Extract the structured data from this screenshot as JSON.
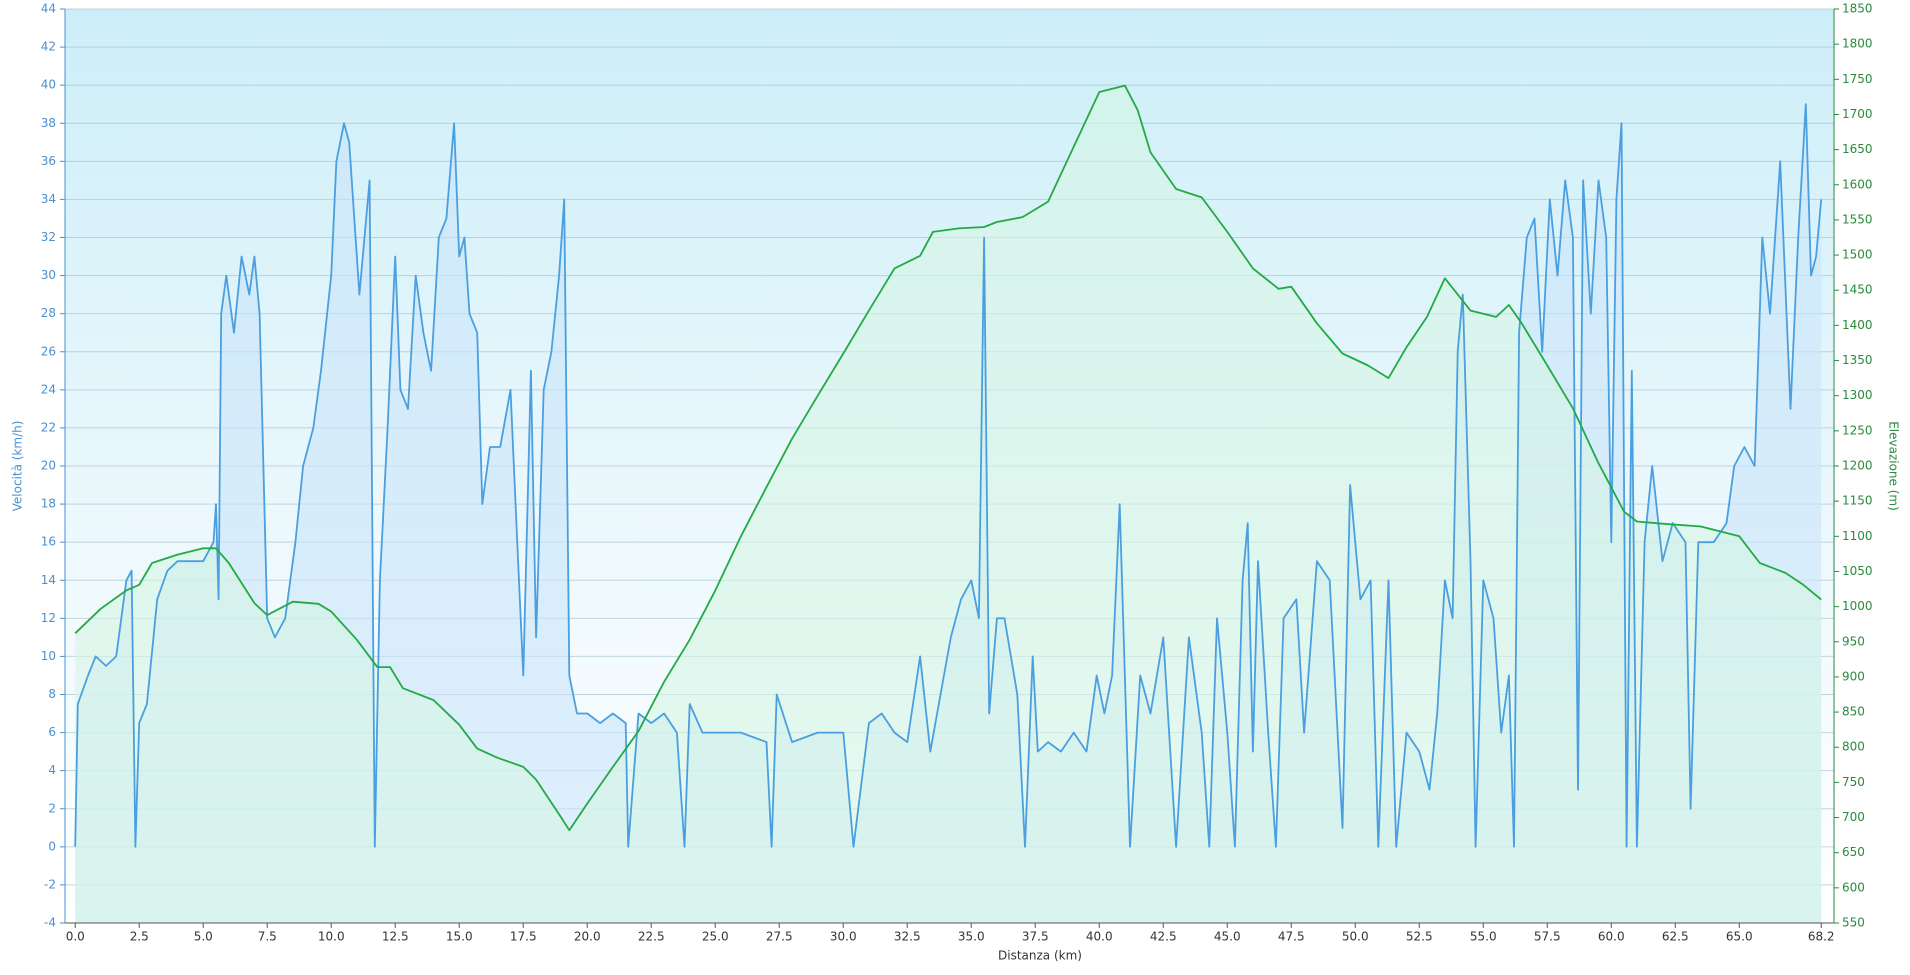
{
  "chart_data": {
    "type": "line",
    "xlabel": "Distanza  (km)",
    "ylabel": "Velocità (km/h)",
    "y2label": "Elevazione (m)",
    "grid": true,
    "xlim": [
      -0.4,
      68.7
    ],
    "xticks": [
      {
        "value": 0,
        "label": "0.0"
      },
      2.5,
      {
        "value": 5,
        "label": "5.0"
      },
      7.5,
      {
        "value": 10,
        "label": "10.0"
      },
      12.5,
      {
        "value": 15,
        "label": "15.0"
      },
      17.5,
      {
        "value": 20,
        "label": "20.0"
      },
      22.5,
      {
        "value": 25,
        "label": "25.0"
      },
      27.5,
      {
        "value": 30,
        "label": "30.0"
      },
      32.5,
      {
        "value": 35,
        "label": "35.0"
      },
      37.5,
      {
        "value": 40,
        "label": "40.0"
      },
      42.5,
      {
        "value": 45,
        "label": "45.0"
      },
      47.5,
      {
        "value": 50,
        "label": "50.0"
      },
      52.5,
      {
        "value": 55,
        "label": "55.0"
      },
      57.5,
      {
        "value": 60,
        "label": "60.0"
      },
      62.5,
      {
        "value": 65,
        "label": "65.0"
      },
      68.2
    ],
    "ylim": [
      -4,
      44
    ],
    "yticks": [
      -4,
      -2,
      0,
      2,
      4,
      6,
      8,
      10,
      12,
      14,
      16,
      18,
      20,
      22,
      24,
      26,
      28,
      30,
      32,
      34,
      36,
      38,
      40,
      42,
      44
    ],
    "y2lim": [
      550,
      1850
    ],
    "y2ticks": [
      550,
      600,
      650,
      700,
      750,
      800,
      850,
      900,
      950,
      1000,
      1050,
      1100,
      1150,
      1200,
      1250,
      1300,
      1350,
      1400,
      1450,
      1500,
      1550,
      1600,
      1650,
      1700,
      1750,
      1800,
      1850
    ],
    "series": [
      {
        "color": "#4a9fe0",
        "fill": "#c9e4fa",
        "x": [
          0,
          0.1,
          0.5,
          0.8,
          1.2,
          1.6,
          2.0,
          2.2,
          2.35,
          2.5,
          2.8,
          3.2,
          3.6,
          4.0,
          4.5,
          5.0,
          5.4,
          5.5,
          5.6,
          5.7,
          5.9,
          6.2,
          6.5,
          6.8,
          7.0,
          7.2,
          7.5,
          7.8,
          8.2,
          8.6,
          8.9,
          9.3,
          9.6,
          10.0,
          10.2,
          10.5,
          10.7,
          10.9,
          11.1,
          11.5,
          11.7,
          11.9,
          12.2,
          12.5,
          12.7,
          13.0,
          13.3,
          13.6,
          13.9,
          14.2,
          14.5,
          14.8,
          15.0,
          15.2,
          15.4,
          15.7,
          15.9,
          16.2,
          16.6,
          17.0,
          17.3,
          17.5,
          17.8,
          18.0,
          18.3,
          18.6,
          18.9,
          19.1,
          19.3,
          19.6,
          20.0,
          20.5,
          21.0,
          21.5,
          21.6,
          22.0,
          22.5,
          23.0,
          23.5,
          23.8,
          24.0,
          24.5,
          25.0,
          26.0,
          27.0,
          27.2,
          27.4,
          28.0,
          29.0,
          30.0,
          30.4,
          31.0,
          31.5,
          32.0,
          32.5,
          33.0,
          33.4,
          33.8,
          34.2,
          34.6,
          35.0,
          35.3,
          35.5,
          35.7,
          36.0,
          36.3,
          36.8,
          37.1,
          37.4,
          37.6,
          38.0,
          38.5,
          39.0,
          39.5,
          39.9,
          40.2,
          40.5,
          40.8,
          41.2,
          41.6,
          42.0,
          42.5,
          43.0,
          43.5,
          44.0,
          44.3,
          44.6,
          45.0,
          45.3,
          45.6,
          45.8,
          46.0,
          46.2,
          46.6,
          46.9,
          47.2,
          47.7,
          48.0,
          48.5,
          49.0,
          49.5,
          49.8,
          50.2,
          50.6,
          50.9,
          51.3,
          51.6,
          52.0,
          52.5,
          52.9,
          53.2,
          53.5,
          53.8,
          54.0,
          54.2,
          54.5,
          54.7,
          55.0,
          55.4,
          55.7,
          56.0,
          56.2,
          56.4,
          56.7,
          57.0,
          57.3,
          57.6,
          57.9,
          58.2,
          58.5,
          58.7,
          58.9,
          59.2,
          59.5,
          59.8,
          60.0,
          60.2,
          60.4,
          60.6,
          60.8,
          61.0,
          61.3,
          61.6,
          62.0,
          62.4,
          62.9,
          63.1,
          63.4,
          64.0,
          64.5,
          64.8,
          65.2,
          65.6,
          65.9,
          66.2,
          66.6,
          67.0,
          67.3,
          67.6,
          67.8,
          68.0,
          68.2
        ],
        "values": [
          0,
          7.5,
          9,
          10,
          9.5,
          10,
          14,
          14.5,
          0,
          6.5,
          7.5,
          13,
          14.5,
          15,
          15,
          15,
          16,
          18,
          13,
          28,
          30,
          27,
          31,
          29,
          31,
          28,
          12,
          11,
          12,
          16,
          20,
          22,
          25,
          30,
          36,
          38,
          37,
          33,
          29,
          35,
          0,
          14,
          22,
          31,
          24,
          23,
          30,
          27,
          25,
          32,
          33,
          38,
          31,
          32,
          28,
          27,
          18,
          21,
          21,
          24,
          15,
          9,
          25,
          11,
          24,
          26,
          30,
          34,
          9,
          7,
          7,
          6.5,
          7,
          6.5,
          0,
          7,
          6.5,
          7,
          6,
          0,
          7.5,
          6,
          6,
          6,
          5.5,
          0,
          8,
          5.5,
          6,
          6,
          0,
          6.5,
          7,
          6,
          5.5,
          10,
          5,
          8,
          11,
          13,
          14,
          12,
          32,
          7,
          12,
          12,
          8,
          0,
          10,
          5,
          5.5,
          5,
          6,
          5,
          9,
          7,
          9,
          18,
          0,
          9,
          7,
          11,
          0,
          11,
          6,
          0,
          12,
          6,
          0,
          14,
          17,
          5,
          15,
          6,
          0,
          12,
          13,
          6,
          15,
          14,
          1,
          19,
          13,
          14,
          0,
          14,
          0,
          6,
          5,
          3,
          7,
          14,
          12,
          26,
          29,
          15,
          0,
          14,
          12,
          6,
          9,
          0,
          27,
          32,
          33,
          26,
          34,
          30,
          35,
          32,
          3,
          35,
          28,
          35,
          32,
          16,
          34,
          38,
          0,
          25,
          0,
          16,
          20,
          15,
          17,
          16,
          2,
          16,
          16,
          17,
          20,
          21,
          20,
          32,
          28,
          36,
          23,
          32,
          39,
          30,
          31,
          34
        ]
      },
      {
        "color": "#22aa44",
        "fill": "#d6f5e4",
        "axis": "y2",
        "x": [
          0,
          1,
          2,
          2.5,
          3,
          4,
          5,
          5.5,
          6,
          7,
          7.5,
          8.5,
          9.5,
          10,
          11,
          11.8,
          12.3,
          12.8,
          14,
          15,
          15.7,
          16.5,
          17.5,
          18,
          19,
          19.3,
          20,
          21,
          22,
          23,
          24,
          25,
          26,
          27,
          28,
          29,
          30,
          31,
          32,
          33,
          33.5,
          34.5,
          35.5,
          36,
          37,
          38,
          39,
          40,
          41,
          41.5,
          42,
          43,
          44,
          45,
          46,
          47,
          47.5,
          48.5,
          49.5,
          50.5,
          51.3,
          52,
          52.8,
          53.5,
          54.5,
          55.5,
          56,
          56.5,
          57.5,
          58.5,
          59.5,
          60.5,
          61,
          62,
          63.5,
          65,
          65.8,
          66.8,
          67.5,
          68.2
        ],
        "values": [
          962,
          997,
          1023,
          1031,
          1062,
          1074,
          1083,
          1083,
          1062,
          1005,
          988,
          1007,
          1004,
          993,
          953,
          914,
          914,
          884,
          867,
          832,
          798,
          785,
          772,
          754,
          699,
          682,
          720,
          772,
          823,
          893,
          953,
          1023,
          1100,
          1170,
          1239,
          1300,
          1360,
          1421,
          1481,
          1499,
          1533,
          1538,
          1540,
          1547,
          1554,
          1576,
          1654,
          1732,
          1741,
          1706,
          1646,
          1594,
          1582,
          1533,
          1481,
          1452,
          1455,
          1403,
          1360,
          1343,
          1325,
          1369,
          1412,
          1467,
          1421,
          1412,
          1429,
          1403,
          1343,
          1282,
          1204,
          1135,
          1121,
          1118,
          1114,
          1100,
          1062,
          1048,
          1031,
          1010
        ]
      }
    ]
  }
}
